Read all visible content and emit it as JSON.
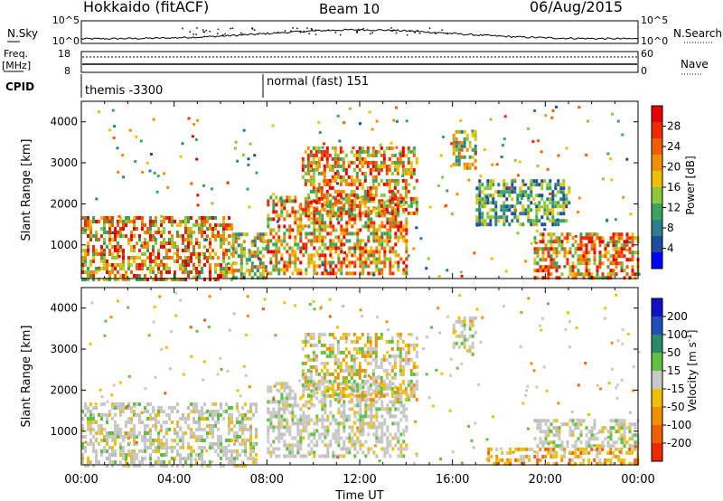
{
  "header": {
    "station": "Hokkaido (fitACF)",
    "beam": "Beam 10",
    "date": "06/Aug/2015"
  },
  "strip_panels": {
    "nsky": {
      "left_label": "N.Sky",
      "left_ticks": [
        "10^5",
        "10^0"
      ],
      "right_label": "N.Search",
      "right_ticks": [
        "10^5",
        "10^0"
      ]
    },
    "freq": {
      "left_label_top": "Freq.",
      "left_label_unit": "[MHz]",
      "left_ticks": [
        "18",
        "8"
      ],
      "right_label": "Nave",
      "right_ticks": [
        "60",
        "0"
      ]
    },
    "cpid": {
      "label": "CPID",
      "modes": [
        {
          "name": "themis -3300",
          "start_hour": 0
        },
        {
          "name": "normal (fast) 151",
          "start_hour": 8
        }
      ]
    }
  },
  "chart_data": [
    {
      "type": "heatmap",
      "panel": "power",
      "xlabel": "",
      "ylabel": "Slant Range [km]",
      "xlim": [
        0,
        24
      ],
      "ylim": [
        180,
        4500
      ],
      "yticks": [
        "1000",
        "2000",
        "3000",
        "4000"
      ],
      "colorbar": {
        "label": "Power [dB]",
        "range": [
          0,
          30
        ],
        "ticks": [
          "4",
          "8",
          "12",
          "16",
          "20",
          "24",
          "28"
        ],
        "colors": [
          "#0000ff",
          "#1e4da0",
          "#2c7e8c",
          "#3aa35c",
          "#8cc83c",
          "#f0c000",
          "#f09000",
          "#f06000",
          "#f02a00",
          "#e60000"
        ]
      },
      "echo_regions": [
        {
          "t0": 0.0,
          "t1": 6.5,
          "r0": 200,
          "r1": 1700,
          "level": "strong"
        },
        {
          "t0": 6.5,
          "t1": 8.0,
          "r0": 200,
          "r1": 1300,
          "level": "moderate"
        },
        {
          "t0": 8.0,
          "t1": 14.0,
          "r0": 300,
          "r1": 2200,
          "level": "strong"
        },
        {
          "t0": 9.5,
          "t1": 14.5,
          "r0": 1800,
          "r1": 3400,
          "level": "strong"
        },
        {
          "t0": 16.0,
          "t1": 17.0,
          "r0": 2900,
          "r1": 3800,
          "level": "moderate"
        },
        {
          "t0": 17.0,
          "t1": 21.0,
          "r0": 1500,
          "r1": 2600,
          "level": "weak"
        },
        {
          "t0": 19.5,
          "t1": 24.0,
          "r0": 200,
          "r1": 1300,
          "level": "strong"
        }
      ]
    },
    {
      "type": "heatmap",
      "panel": "velocity",
      "xlabel": "Time UT",
      "ylabel": "Slant Range [km]",
      "xlim": [
        0,
        24
      ],
      "ylim": [
        180,
        4500
      ],
      "xticks": [
        "00:00",
        "04:00",
        "08:00",
        "12:00",
        "16:00",
        "20:00",
        "00:00"
      ],
      "yticks": [
        "1000",
        "2000",
        "3000",
        "4000"
      ],
      "colorbar": {
        "label": "Velocity [m s^-1]",
        "range": [
          -250,
          250
        ],
        "ticks": [
          "200",
          "100",
          "50",
          "15",
          "-15",
          "-50",
          "-100",
          "-200"
        ],
        "colors": [
          "#1010c8",
          "#2050b8",
          "#2a8a6a",
          "#60c040",
          "#c8c8c8",
          "#f0c000",
          "#f09000",
          "#f06000",
          "#f02a00"
        ]
      },
      "echo_regions": [
        {
          "t0": 0.0,
          "t1": 7.5,
          "r0": 200,
          "r1": 1700,
          "level": "ground"
        },
        {
          "t0": 8.0,
          "t1": 14.0,
          "r0": 400,
          "r1": 2200,
          "level": "ground"
        },
        {
          "t0": 9.5,
          "t1": 14.5,
          "r0": 1800,
          "r1": 3400,
          "level": "mixed"
        },
        {
          "t0": 16.0,
          "t1": 17.0,
          "r0": 2900,
          "r1": 3800,
          "level": "ground"
        },
        {
          "t0": 17.5,
          "t1": 24.0,
          "r0": 200,
          "r1": 600,
          "level": "negative"
        },
        {
          "t0": 19.5,
          "t1": 24.0,
          "r0": 600,
          "r1": 1300,
          "level": "ground"
        }
      ]
    }
  ]
}
